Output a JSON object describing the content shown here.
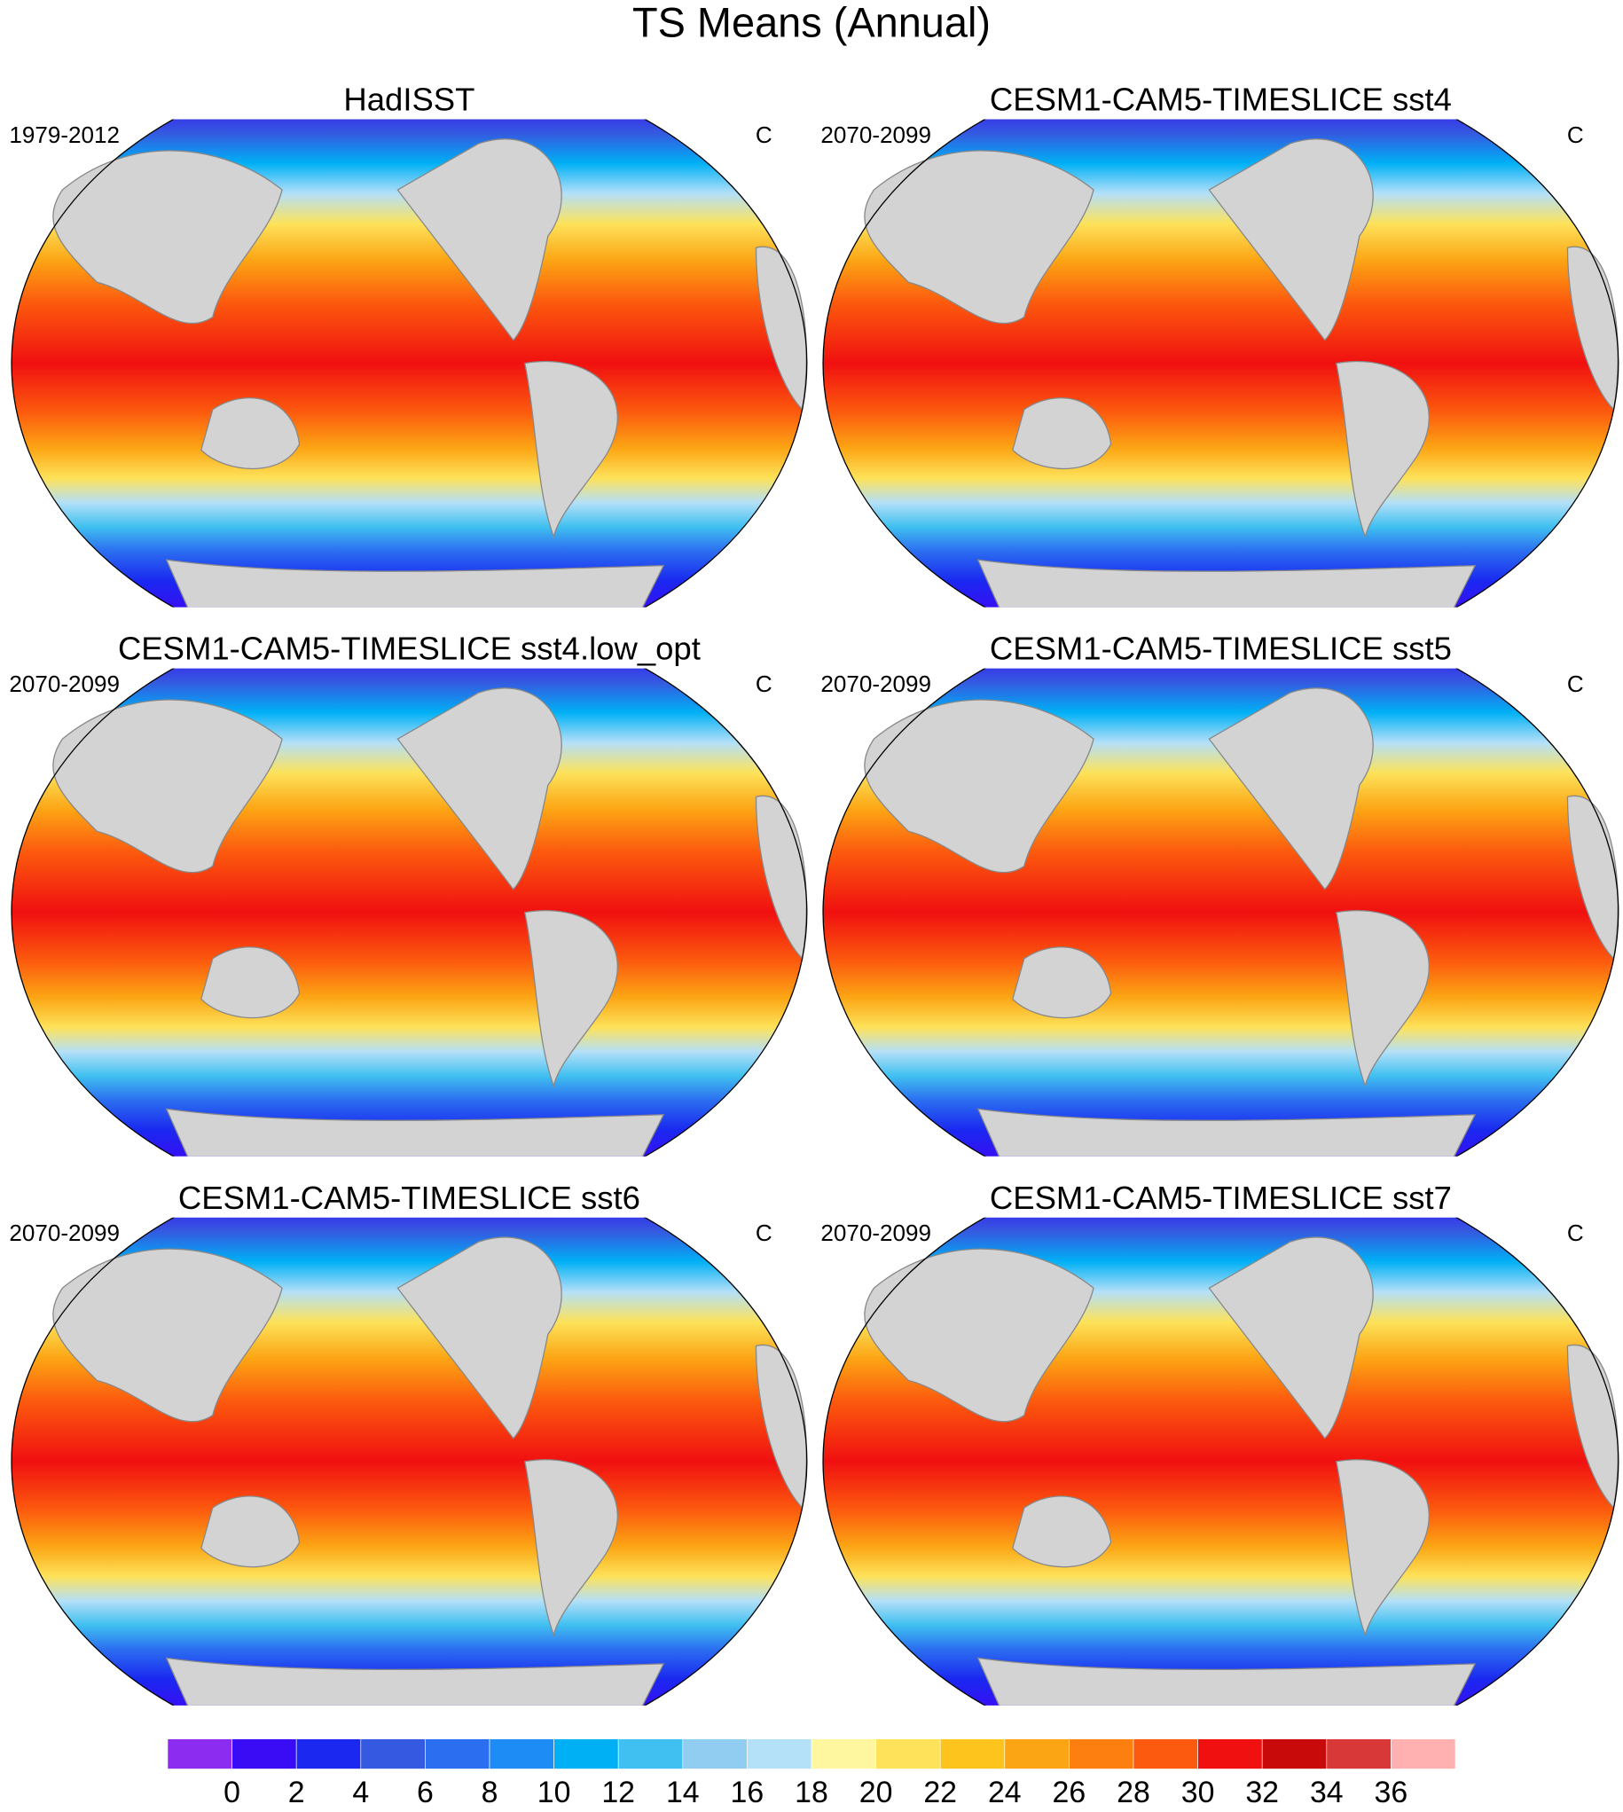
{
  "title": "TS Means (Annual)",
  "panels": [
    {
      "title": "HadISST",
      "period": "1979-2012",
      "units": "C"
    },
    {
      "title": "CESM1-CAM5-TIMESLICE sst4",
      "period": "2070-2099",
      "units": "C"
    },
    {
      "title": "CESM1-CAM5-TIMESLICE sst4.low_opt",
      "period": "2070-2099",
      "units": "C"
    },
    {
      "title": "CESM1-CAM5-TIMESLICE sst5",
      "period": "2070-2099",
      "units": "C"
    },
    {
      "title": "CESM1-CAM5-TIMESLICE sst6",
      "period": "2070-2099",
      "units": "C"
    },
    {
      "title": "CESM1-CAM5-TIMESLICE sst7",
      "period": "2070-2099",
      "units": "C"
    }
  ],
  "colorbar": {
    "ticks": [
      0,
      2,
      4,
      6,
      8,
      10,
      12,
      14,
      16,
      18,
      20,
      22,
      24,
      26,
      28,
      30,
      32,
      34,
      36
    ],
    "colors": [
      "#8c2cf0",
      "#3a0cf5",
      "#1a28f0",
      "#3559e0",
      "#2b6ef0",
      "#1e8cf5",
      "#00b0f5",
      "#40c0f0",
      "#90cdf0",
      "#b4e0f8",
      "#fff7a0",
      "#fde25a",
      "#fcc41c",
      "#fca514",
      "#fc7f10",
      "#fc5a0e",
      "#f01010",
      "#c80a0a",
      "#d83838",
      "#ffb0b0"
    ]
  }
}
